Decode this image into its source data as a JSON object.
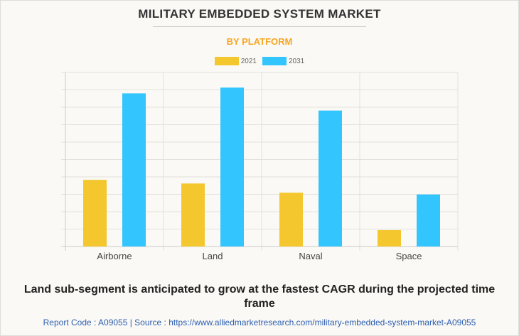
{
  "chart_data": {
    "type": "bar",
    "title": "MILITARY EMBEDDED SYSTEM MARKET",
    "subtitle": "BY PLATFORM",
    "categories": [
      "Airborne",
      "Land",
      "Naval",
      "Space"
    ],
    "series": [
      {
        "name": "2021",
        "color": "#f4c72f",
        "values": [
          3.83,
          3.62,
          3.09,
          0.94
        ]
      },
      {
        "name": "2031",
        "color": "#33c5fe",
        "values": [
          8.8,
          9.13,
          7.81,
          2.99
        ]
      }
    ],
    "ylim": [
      0,
      10
    ],
    "y_gridlines": 10,
    "grid": true,
    "legend_position": "top-center",
    "xlabel": "",
    "ylabel": ""
  },
  "caption": "Land sub-segment is anticipated to grow at the fastest CAGR during the projected time frame",
  "footer": "Report Code : A09055  |  Source : https://www.alliedmarketresearch.com/military-embedded-system-market-A09055"
}
